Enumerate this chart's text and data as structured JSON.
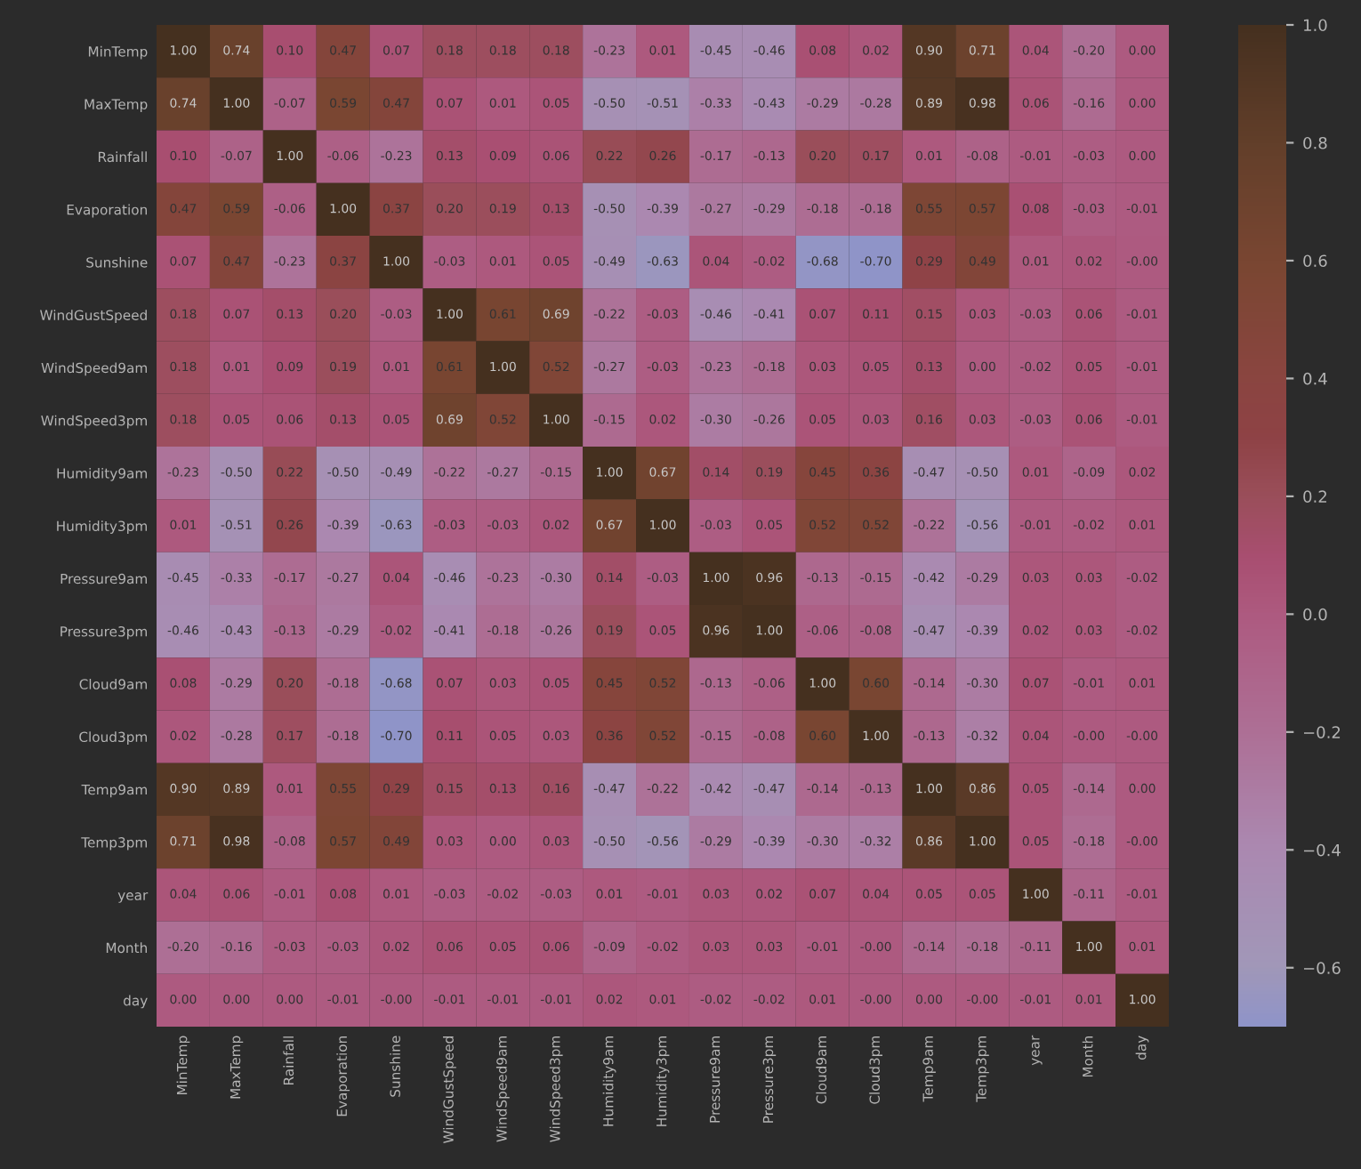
{
  "chart_data": {
    "type": "heatmap",
    "categories": [
      "MinTemp",
      "MaxTemp",
      "Rainfall",
      "Evaporation",
      "Sunshine",
      "WindGustSpeed",
      "WindSpeed9am",
      "WindSpeed3pm",
      "Humidity9am",
      "Humidity3pm",
      "Pressure9am",
      "Pressure3pm",
      "Cloud9am",
      "Cloud3pm",
      "Temp9am",
      "Temp3pm",
      "year",
      "Month",
      "day"
    ],
    "y_categories": [
      "MinTemp",
      "MaxTemp",
      "Rainfall",
      "Evaporation",
      "Sunshine",
      "WindGustSpeed",
      "WindSpeed9am",
      "WindSpeed3pm",
      "Humidity9am",
      "Humidity3pm",
      "Pressure9am",
      "Pressure3pm",
      "Cloud9am",
      "Cloud3pm",
      "Temp9am",
      "Temp3pm",
      "year",
      "Month",
      "day"
    ],
    "cells": [
      [
        1.0,
        0.74,
        0.1,
        0.47,
        0.07,
        0.18,
        0.18,
        0.18,
        -0.23,
        0.01,
        -0.45,
        -0.46,
        0.08,
        0.02,
        0.9,
        0.71,
        0.04,
        -0.2,
        0.0
      ],
      [
        0.74,
        1.0,
        -0.07,
        0.59,
        0.47,
        0.07,
        0.01,
        0.05,
        -0.5,
        -0.51,
        -0.33,
        -0.43,
        -0.29,
        -0.28,
        0.89,
        0.98,
        0.06,
        -0.16,
        0.0
      ],
      [
        0.1,
        -0.07,
        1.0,
        -0.06,
        -0.23,
        0.13,
        0.09,
        0.06,
        0.22,
        0.26,
        -0.17,
        -0.13,
        0.2,
        0.17,
        0.01,
        -0.08,
        -0.01,
        -0.03,
        0.0
      ],
      [
        0.47,
        0.59,
        -0.06,
        1.0,
        0.37,
        0.2,
        0.19,
        0.13,
        -0.5,
        -0.39,
        -0.27,
        -0.29,
        -0.18,
        -0.18,
        0.55,
        0.57,
        0.08,
        -0.03,
        -0.01
      ],
      [
        0.07,
        0.47,
        -0.23,
        0.37,
        1.0,
        -0.03,
        0.01,
        0.05,
        -0.49,
        -0.63,
        0.04,
        -0.02,
        -0.68,
        -0.7,
        0.29,
        0.49,
        0.01,
        0.02,
        -0.0
      ],
      [
        0.18,
        0.07,
        0.13,
        0.2,
        -0.03,
        1.0,
        0.61,
        0.69,
        -0.22,
        -0.03,
        -0.46,
        -0.41,
        0.07,
        0.11,
        0.15,
        0.03,
        -0.03,
        0.06,
        -0.01
      ],
      [
        0.18,
        0.01,
        0.09,
        0.19,
        0.01,
        0.61,
        1.0,
        0.52,
        -0.27,
        -0.03,
        -0.23,
        -0.18,
        0.03,
        0.05,
        0.13,
        0.0,
        -0.02,
        0.05,
        -0.01
      ],
      [
        0.18,
        0.05,
        0.06,
        0.13,
        0.05,
        0.69,
        0.52,
        1.0,
        -0.15,
        0.02,
        -0.3,
        -0.26,
        0.05,
        0.03,
        0.16,
        0.03,
        -0.03,
        0.06,
        -0.01
      ],
      [
        -0.23,
        -0.5,
        0.22,
        -0.5,
        -0.49,
        -0.22,
        -0.27,
        -0.15,
        1.0,
        0.67,
        0.14,
        0.19,
        0.45,
        0.36,
        -0.47,
        -0.5,
        0.01,
        -0.09,
        0.02
      ],
      [
        0.01,
        -0.51,
        0.26,
        -0.39,
        -0.63,
        -0.03,
        -0.03,
        0.02,
        0.67,
        1.0,
        -0.03,
        0.05,
        0.52,
        0.52,
        -0.22,
        -0.56,
        -0.01,
        -0.02,
        0.01
      ],
      [
        -0.45,
        -0.33,
        -0.17,
        -0.27,
        0.04,
        -0.46,
        -0.23,
        -0.3,
        0.14,
        -0.03,
        1.0,
        0.96,
        -0.13,
        -0.15,
        -0.42,
        -0.29,
        0.03,
        0.03,
        -0.02
      ],
      [
        -0.46,
        -0.43,
        -0.13,
        -0.29,
        -0.02,
        -0.41,
        -0.18,
        -0.26,
        0.19,
        0.05,
        0.96,
        1.0,
        -0.06,
        -0.08,
        -0.47,
        -0.39,
        0.02,
        0.03,
        -0.02
      ],
      [
        0.08,
        -0.29,
        0.2,
        -0.18,
        -0.68,
        0.07,
        0.03,
        0.05,
        0.45,
        0.52,
        -0.13,
        -0.06,
        1.0,
        0.6,
        -0.14,
        -0.3,
        0.07,
        -0.01,
        0.01
      ],
      [
        0.02,
        -0.28,
        0.17,
        -0.18,
        -0.7,
        0.11,
        0.05,
        0.03,
        0.36,
        0.52,
        -0.15,
        -0.08,
        0.6,
        1.0,
        -0.13,
        -0.32,
        0.04,
        -0.0,
        -0.0
      ],
      [
        0.9,
        0.89,
        0.01,
        0.55,
        0.29,
        0.15,
        0.13,
        0.16,
        -0.47,
        -0.22,
        -0.42,
        -0.47,
        -0.14,
        -0.13,
        1.0,
        0.86,
        0.05,
        -0.14,
        0.0
      ],
      [
        0.71,
        0.98,
        -0.08,
        0.57,
        0.49,
        0.03,
        0.0,
        0.03,
        -0.5,
        -0.56,
        -0.29,
        -0.39,
        -0.3,
        -0.32,
        0.86,
        1.0,
        0.05,
        -0.18,
        -0.0
      ],
      [
        0.04,
        0.06,
        -0.01,
        0.08,
        0.01,
        -0.03,
        -0.02,
        -0.03,
        0.01,
        -0.01,
        0.03,
        0.02,
        0.07,
        0.04,
        0.05,
        0.05,
        1.0,
        -0.11,
        -0.01
      ],
      [
        -0.2,
        -0.16,
        -0.03,
        -0.03,
        0.02,
        0.06,
        0.05,
        0.06,
        -0.09,
        -0.02,
        0.03,
        0.03,
        -0.01,
        -0.0,
        -0.14,
        -0.18,
        -0.11,
        1.0,
        0.01
      ],
      [
        0.0,
        0.0,
        0.0,
        -0.01,
        -0.0,
        -0.01,
        -0.01,
        -0.01,
        0.02,
        0.01,
        -0.02,
        -0.02,
        0.01,
        -0.0,
        0.0,
        -0.0,
        -0.01,
        0.01,
        1.0
      ]
    ],
    "cell_labels": [
      [
        "1.00",
        "0.74",
        "0.10",
        "0.47",
        "0.07",
        "0.18",
        "0.18",
        "0.18",
        "-0.23",
        "0.01",
        "-0.45",
        "-0.46",
        "0.08",
        "0.02",
        "0.90",
        "0.71",
        "0.04",
        "-0.20",
        "0.00"
      ],
      [
        "0.74",
        "1.00",
        "-0.07",
        "0.59",
        "0.47",
        "0.07",
        "0.01",
        "0.05",
        "-0.50",
        "-0.51",
        "-0.33",
        "-0.43",
        "-0.29",
        "-0.28",
        "0.89",
        "0.98",
        "0.06",
        "-0.16",
        "0.00"
      ],
      [
        "0.10",
        "-0.07",
        "1.00",
        "-0.06",
        "-0.23",
        "0.13",
        "0.09",
        "0.06",
        "0.22",
        "0.26",
        "-0.17",
        "-0.13",
        "0.20",
        "0.17",
        "0.01",
        "-0.08",
        "-0.01",
        "-0.03",
        "0.00"
      ],
      [
        "0.47",
        "0.59",
        "-0.06",
        "1.00",
        "0.37",
        "0.20",
        "0.19",
        "0.13",
        "-0.50",
        "-0.39",
        "-0.27",
        "-0.29",
        "-0.18",
        "-0.18",
        "0.55",
        "0.57",
        "0.08",
        "-0.03",
        "-0.01"
      ],
      [
        "0.07",
        "0.47",
        "-0.23",
        "0.37",
        "1.00",
        "-0.03",
        "0.01",
        "0.05",
        "-0.49",
        "-0.63",
        "0.04",
        "-0.02",
        "-0.68",
        "-0.70",
        "0.29",
        "0.49",
        "0.01",
        "0.02",
        "-0.00"
      ],
      [
        "0.18",
        "0.07",
        "0.13",
        "0.20",
        "-0.03",
        "1.00",
        "0.61",
        "0.69",
        "-0.22",
        "-0.03",
        "-0.46",
        "-0.41",
        "0.07",
        "0.11",
        "0.15",
        "0.03",
        "-0.03",
        "0.06",
        "-0.01"
      ],
      [
        "0.18",
        "0.01",
        "0.09",
        "0.19",
        "0.01",
        "0.61",
        "1.00",
        "0.52",
        "-0.27",
        "-0.03",
        "-0.23",
        "-0.18",
        "0.03",
        "0.05",
        "0.13",
        "0.00",
        "-0.02",
        "0.05",
        "-0.01"
      ],
      [
        "0.18",
        "0.05",
        "0.06",
        "0.13",
        "0.05",
        "0.69",
        "0.52",
        "1.00",
        "-0.15",
        "0.02",
        "-0.30",
        "-0.26",
        "0.05",
        "0.03",
        "0.16",
        "0.03",
        "-0.03",
        "0.06",
        "-0.01"
      ],
      [
        "-0.23",
        "-0.50",
        "0.22",
        "-0.50",
        "-0.49",
        "-0.22",
        "-0.27",
        "-0.15",
        "1.00",
        "0.67",
        "0.14",
        "0.19",
        "0.45",
        "0.36",
        "-0.47",
        "-0.50",
        "0.01",
        "-0.09",
        "0.02"
      ],
      [
        "0.01",
        "-0.51",
        "0.26",
        "-0.39",
        "-0.63",
        "-0.03",
        "-0.03",
        "0.02",
        "0.67",
        "1.00",
        "-0.03",
        "0.05",
        "0.52",
        "0.52",
        "-0.22",
        "-0.56",
        "-0.01",
        "-0.02",
        "0.01"
      ],
      [
        "-0.45",
        "-0.33",
        "-0.17",
        "-0.27",
        "0.04",
        "-0.46",
        "-0.23",
        "-0.30",
        "0.14",
        "-0.03",
        "1.00",
        "0.96",
        "-0.13",
        "-0.15",
        "-0.42",
        "-0.29",
        "0.03",
        "0.03",
        "-0.02"
      ],
      [
        "-0.46",
        "-0.43",
        "-0.13",
        "-0.29",
        "-0.02",
        "-0.41",
        "-0.18",
        "-0.26",
        "0.19",
        "0.05",
        "0.96",
        "1.00",
        "-0.06",
        "-0.08",
        "-0.47",
        "-0.39",
        "0.02",
        "0.03",
        "-0.02"
      ],
      [
        "0.08",
        "-0.29",
        "0.20",
        "-0.18",
        "-0.68",
        "0.07",
        "0.03",
        "0.05",
        "0.45",
        "0.52",
        "-0.13",
        "-0.06",
        "1.00",
        "0.60",
        "-0.14",
        "-0.30",
        "0.07",
        "-0.01",
        "0.01"
      ],
      [
        "0.02",
        "-0.28",
        "0.17",
        "-0.18",
        "-0.70",
        "0.11",
        "0.05",
        "0.03",
        "0.36",
        "0.52",
        "-0.15",
        "-0.08",
        "0.60",
        "1.00",
        "-0.13",
        "-0.32",
        "0.04",
        "-0.00",
        "-0.00"
      ],
      [
        "0.90",
        "0.89",
        "0.01",
        "0.55",
        "0.29",
        "0.15",
        "0.13",
        "0.16",
        "-0.47",
        "-0.22",
        "-0.42",
        "-0.47",
        "-0.14",
        "-0.13",
        "1.00",
        "0.86",
        "0.05",
        "-0.14",
        "0.00"
      ],
      [
        "0.71",
        "0.98",
        "-0.08",
        "0.57",
        "0.49",
        "0.03",
        "0.00",
        "0.03",
        "-0.50",
        "-0.56",
        "-0.29",
        "-0.39",
        "-0.30",
        "-0.32",
        "0.86",
        "1.00",
        "0.05",
        "-0.18",
        "-0.00"
      ],
      [
        "0.04",
        "0.06",
        "-0.01",
        "0.08",
        "0.01",
        "-0.03",
        "-0.02",
        "-0.03",
        "0.01",
        "-0.01",
        "0.03",
        "0.02",
        "0.07",
        "0.04",
        "0.05",
        "0.05",
        "1.00",
        "-0.11",
        "-0.01"
      ],
      [
        "-0.20",
        "-0.16",
        "-0.03",
        "-0.03",
        "0.02",
        "0.06",
        "0.05",
        "0.06",
        "-0.09",
        "-0.02",
        "0.03",
        "0.03",
        "-0.01",
        "-0.00",
        "-0.14",
        "-0.18",
        "-0.11",
        "1.00",
        "0.01"
      ],
      [
        "0.00",
        "0.00",
        "0.00",
        "-0.01",
        "-0.00",
        "-0.01",
        "-0.01",
        "-0.01",
        "0.02",
        "0.01",
        "-0.02",
        "-0.02",
        "0.01",
        "-0.00",
        "0.00",
        "-0.00",
        "-0.01",
        "0.01",
        "1.00"
      ]
    ],
    "clim": [
      -0.7,
      1.0
    ],
    "cticks": [
      {
        "value": -0.6,
        "label": "−0.6"
      },
      {
        "value": -0.4,
        "label": "−0.4"
      },
      {
        "value": -0.2,
        "label": "−0.2"
      },
      {
        "value": 0.0,
        "label": "0.0"
      },
      {
        "value": 0.2,
        "label": "0.2"
      },
      {
        "value": 0.4,
        "label": "0.4"
      },
      {
        "value": 0.6,
        "label": "0.6"
      },
      {
        "value": 0.8,
        "label": "0.8"
      },
      {
        "value": 1.0,
        "label": "1.0"
      }
    ],
    "data_labels": true
  }
}
